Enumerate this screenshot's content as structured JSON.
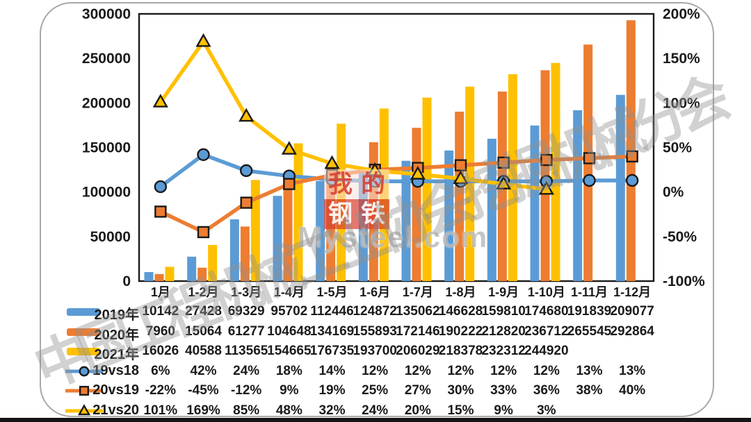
{
  "chart_data": {
    "type": "bar+line",
    "categories": [
      "1月",
      "1-2月",
      "1-3月",
      "1-4月",
      "1-5月",
      "1-6月",
      "1-7月",
      "1-8月",
      "1-9月",
      "1-10月",
      "1-11月",
      "1-12月"
    ],
    "bar_series": [
      {
        "name": "2019年",
        "color": "#5B9BD5",
        "values": [
          10142,
          27428,
          69329,
          95702,
          112446,
          124872,
          135062,
          146628,
          159810,
          174680,
          191839,
          209077
        ]
      },
      {
        "name": "2020年",
        "color": "#ED7D31",
        "values": [
          7960,
          15064,
          61277,
          104648,
          134169,
          155893,
          172146,
          190222,
          212820,
          236712,
          265545,
          292864
        ]
      },
      {
        "name": "2021年",
        "color": "#FFC000",
        "values": [
          16026,
          40588,
          113565,
          154665,
          176735,
          193700,
          206029,
          218378,
          232312,
          244920
        ]
      }
    ],
    "line_series": [
      {
        "name": "19vs18",
        "color": "#5B9BD5",
        "marker": "circle",
        "values": [
          6,
          42,
          24,
          18,
          14,
          12,
          12,
          12,
          12,
          12,
          13,
          13
        ]
      },
      {
        "name": "20vs19",
        "color": "#ED7D31",
        "marker": "square",
        "values": [
          -22,
          -45,
          -12,
          9,
          19,
          25,
          27,
          30,
          33,
          36,
          38,
          40
        ]
      },
      {
        "name": "21vs20",
        "color": "#FFC000",
        "marker": "triangle",
        "values": [
          101,
          169,
          85,
          48,
          32,
          24,
          20,
          15,
          9,
          3
        ]
      }
    ],
    "left_axis": {
      "ticks": [
        "300000",
        "250000",
        "200000",
        "150000",
        "100000",
        "50000",
        "0"
      ],
      "min": 0,
      "max": 300000
    },
    "right_axis": {
      "ticks": [
        "200%",
        "150%",
        "100%",
        "50%",
        "0%",
        "-50%",
        "-100%"
      ],
      "min": -100,
      "max": 200
    },
    "grid": false,
    "legend_position": "table-left"
  },
  "watermarks": {
    "diagonal_text": "中国工程机械工业协会挖掘机械分会",
    "logo_chars": [
      "我",
      "的",
      "钢",
      "铁"
    ],
    "logo_site": "Mysteel.com"
  }
}
